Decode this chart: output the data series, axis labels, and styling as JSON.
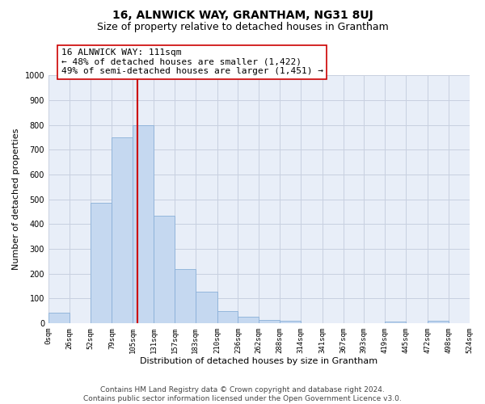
{
  "title": "16, ALNWICK WAY, GRANTHAM, NG31 8UJ",
  "subtitle": "Size of property relative to detached houses in Grantham",
  "xlabel": "Distribution of detached houses by size in Grantham",
  "ylabel": "Number of detached properties",
  "bar_left_edges": [
    0,
    26,
    52,
    79,
    105,
    131,
    157,
    183,
    210,
    236,
    262,
    288,
    314,
    341,
    367,
    393,
    419,
    445,
    472,
    498
  ],
  "bar_heights": [
    42,
    0,
    485,
    748,
    797,
    432,
    218,
    128,
    47,
    26,
    13,
    10,
    0,
    0,
    0,
    0,
    6,
    0,
    8,
    0
  ],
  "bar_widths": [
    26,
    26,
    27,
    26,
    26,
    26,
    26,
    27,
    26,
    26,
    26,
    26,
    27,
    26,
    26,
    26,
    26,
    27,
    26,
    26
  ],
  "bar_color": "#c5d8f0",
  "bar_edge_color": "#8ab0d8",
  "vline_x": 111,
  "vline_color": "#cc0000",
  "annotation_line1": "16 ALNWICK WAY: 111sqm",
  "annotation_line2": "← 48% of detached houses are smaller (1,422)",
  "annotation_line3": "49% of semi-detached houses are larger (1,451) →",
  "annotation_box_color": "#ffffff",
  "annotation_box_edge": "#cc0000",
  "xlim": [
    0,
    524
  ],
  "ylim": [
    0,
    1000
  ],
  "xtick_labels": [
    "0sqm",
    "26sqm",
    "52sqm",
    "79sqm",
    "105sqm",
    "131sqm",
    "157sqm",
    "183sqm",
    "210sqm",
    "236sqm",
    "262sqm",
    "288sqm",
    "314sqm",
    "341sqm",
    "367sqm",
    "393sqm",
    "419sqm",
    "445sqm",
    "472sqm",
    "498sqm",
    "524sqm"
  ],
  "xtick_positions": [
    0,
    26,
    52,
    79,
    105,
    131,
    157,
    183,
    210,
    236,
    262,
    288,
    314,
    341,
    367,
    393,
    419,
    445,
    472,
    498,
    524
  ],
  "ytick_positions": [
    0,
    100,
    200,
    300,
    400,
    500,
    600,
    700,
    800,
    900,
    1000
  ],
  "grid_color": "#c8d0e0",
  "background_color": "#e8eef8",
  "footer_text": "Contains HM Land Registry data © Crown copyright and database right 2024.\nContains public sector information licensed under the Open Government Licence v3.0.",
  "title_fontsize": 10,
  "subtitle_fontsize": 9,
  "xlabel_fontsize": 8,
  "ylabel_fontsize": 8,
  "tick_fontsize": 6.5,
  "annotation_fontsize": 8,
  "footer_fontsize": 6.5
}
